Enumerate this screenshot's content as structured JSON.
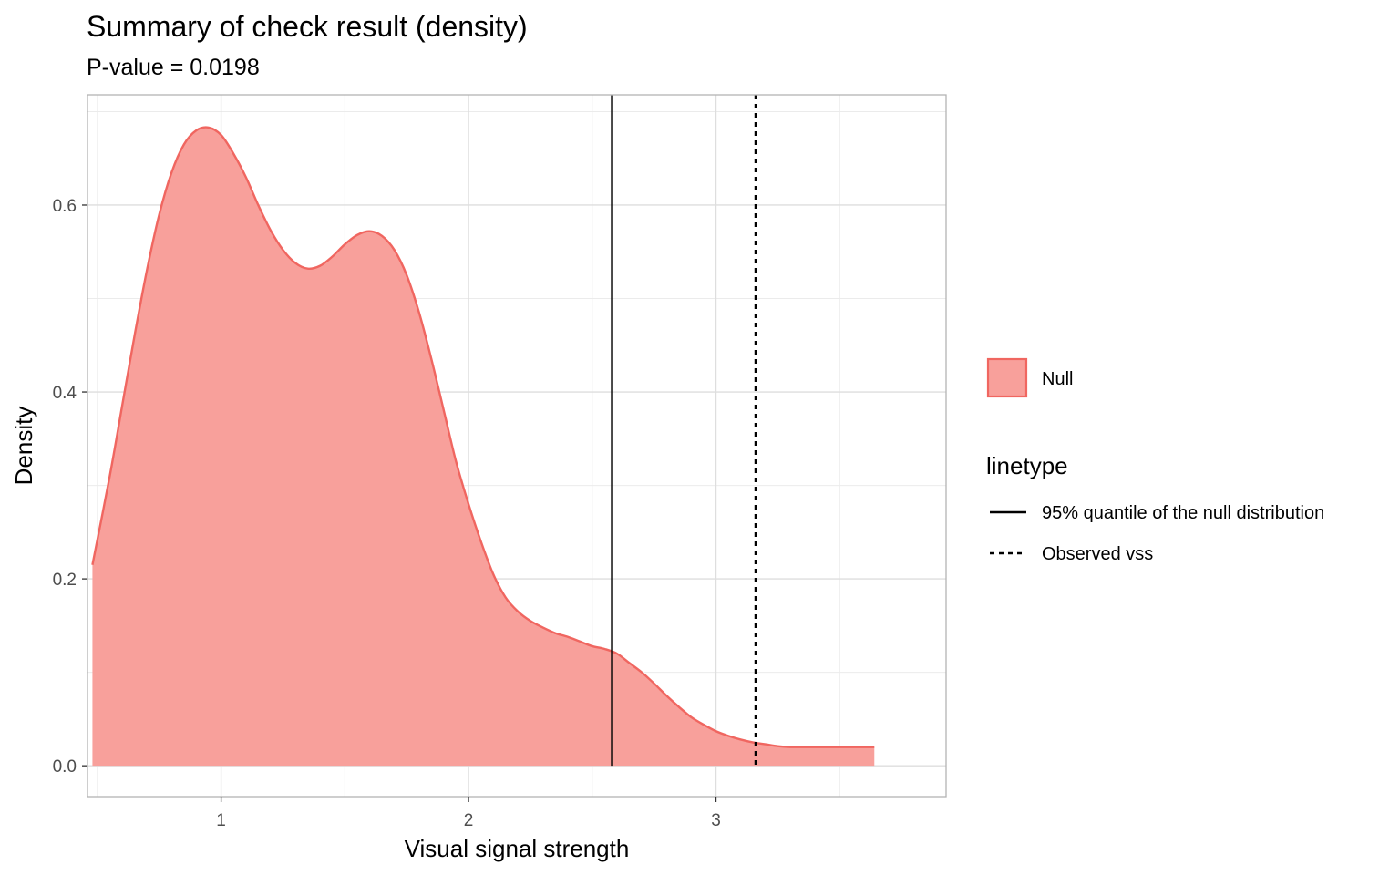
{
  "chart_data": {
    "type": "area",
    "title": "Summary of check result (density)",
    "subtitle": "P-value = 0.0198",
    "xlabel": "Visual signal strength",
    "ylabel": "Density",
    "xlim": [
      0.46,
      3.93
    ],
    "ylim": [
      -0.033,
      0.718
    ],
    "x_ticks": [
      1,
      2,
      3
    ],
    "x_ticks_minor": [
      0.5,
      1.5,
      2.5,
      3.5
    ],
    "y_ticks": [
      0.0,
      0.2,
      0.4,
      0.6
    ],
    "y_ticks_minor": [
      0.1,
      0.3,
      0.5,
      0.7
    ],
    "y_tick_labels": [
      "0.0",
      "0.2",
      "0.4",
      "0.6"
    ],
    "grid": true,
    "legend_position": "right",
    "series": [
      {
        "name": "Null",
        "fill_color": "#f8a09b",
        "line_color": "#f06660",
        "x": [
          0.48,
          0.55,
          0.6,
          0.65,
          0.7,
          0.75,
          0.8,
          0.85,
          0.9,
          0.95,
          1.0,
          1.05,
          1.1,
          1.15,
          1.2,
          1.25,
          1.3,
          1.35,
          1.4,
          1.45,
          1.5,
          1.55,
          1.6,
          1.65,
          1.7,
          1.75,
          1.8,
          1.85,
          1.9,
          1.95,
          2.0,
          2.05,
          2.1,
          2.15,
          2.2,
          2.25,
          2.3,
          2.35,
          2.4,
          2.45,
          2.5,
          2.55,
          2.6,
          2.65,
          2.7,
          2.75,
          2.8,
          2.85,
          2.9,
          2.95,
          3.0,
          3.05,
          3.1,
          3.15,
          3.2,
          3.25,
          3.3,
          3.35,
          3.4,
          3.45,
          3.5,
          3.55,
          3.6,
          3.64
        ],
        "y": [
          0.215,
          0.31,
          0.385,
          0.46,
          0.53,
          0.59,
          0.635,
          0.665,
          0.68,
          0.683,
          0.675,
          0.655,
          0.63,
          0.6,
          0.573,
          0.552,
          0.538,
          0.532,
          0.535,
          0.545,
          0.558,
          0.568,
          0.572,
          0.567,
          0.552,
          0.525,
          0.485,
          0.435,
          0.38,
          0.325,
          0.28,
          0.24,
          0.205,
          0.18,
          0.165,
          0.155,
          0.148,
          0.142,
          0.138,
          0.133,
          0.128,
          0.125,
          0.12,
          0.11,
          0.1,
          0.088,
          0.075,
          0.063,
          0.052,
          0.044,
          0.037,
          0.032,
          0.028,
          0.025,
          0.023,
          0.021,
          0.02,
          0.02,
          0.02,
          0.02,
          0.02,
          0.02,
          0.02,
          0.02
        ]
      }
    ],
    "vlines": [
      {
        "name": "95% quantile of the null distribution",
        "x": 2.58,
        "style": "solid",
        "color": "#000000"
      },
      {
        "name": "Observed vss",
        "x": 3.16,
        "style": "dashed",
        "color": "#000000"
      }
    ],
    "legend": {
      "fill_entries": [
        {
          "label": "Null",
          "fill_color": "#f8a09b",
          "line_color": "#f06660"
        }
      ],
      "linetype_title": "linetype",
      "linetype_entries": [
        {
          "label": "95% quantile of the null distribution",
          "style": "solid"
        },
        {
          "label": "Observed vss",
          "style": "dashed"
        }
      ]
    }
  }
}
